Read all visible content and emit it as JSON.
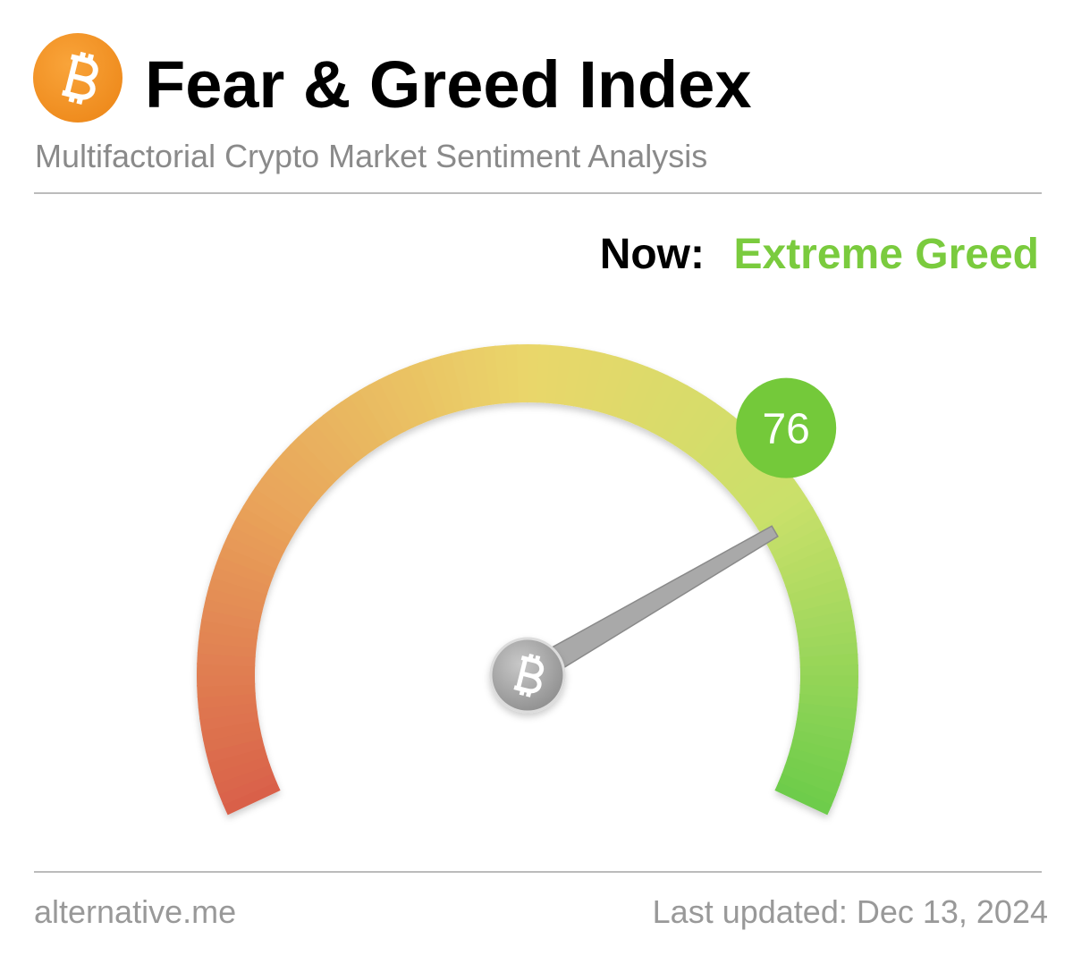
{
  "chart_data": {
    "type": "gauge",
    "title": "Fear & Greed Index",
    "subtitle": "Multifactorial Crypto Market Sentiment Analysis",
    "now_label": "Now:",
    "classification": "Extreme Greed",
    "value": 76,
    "ylim": [
      0,
      100
    ],
    "value_color": "#74c93a",
    "classification_color": "#7acb3e",
    "gradient": [
      "#d9604a",
      "#e9a35a",
      "#ead66a",
      "#c9e06a",
      "#6ccc4a"
    ],
    "source": "alternative.me",
    "updated": "Last updated: Dec 13, 2024"
  }
}
